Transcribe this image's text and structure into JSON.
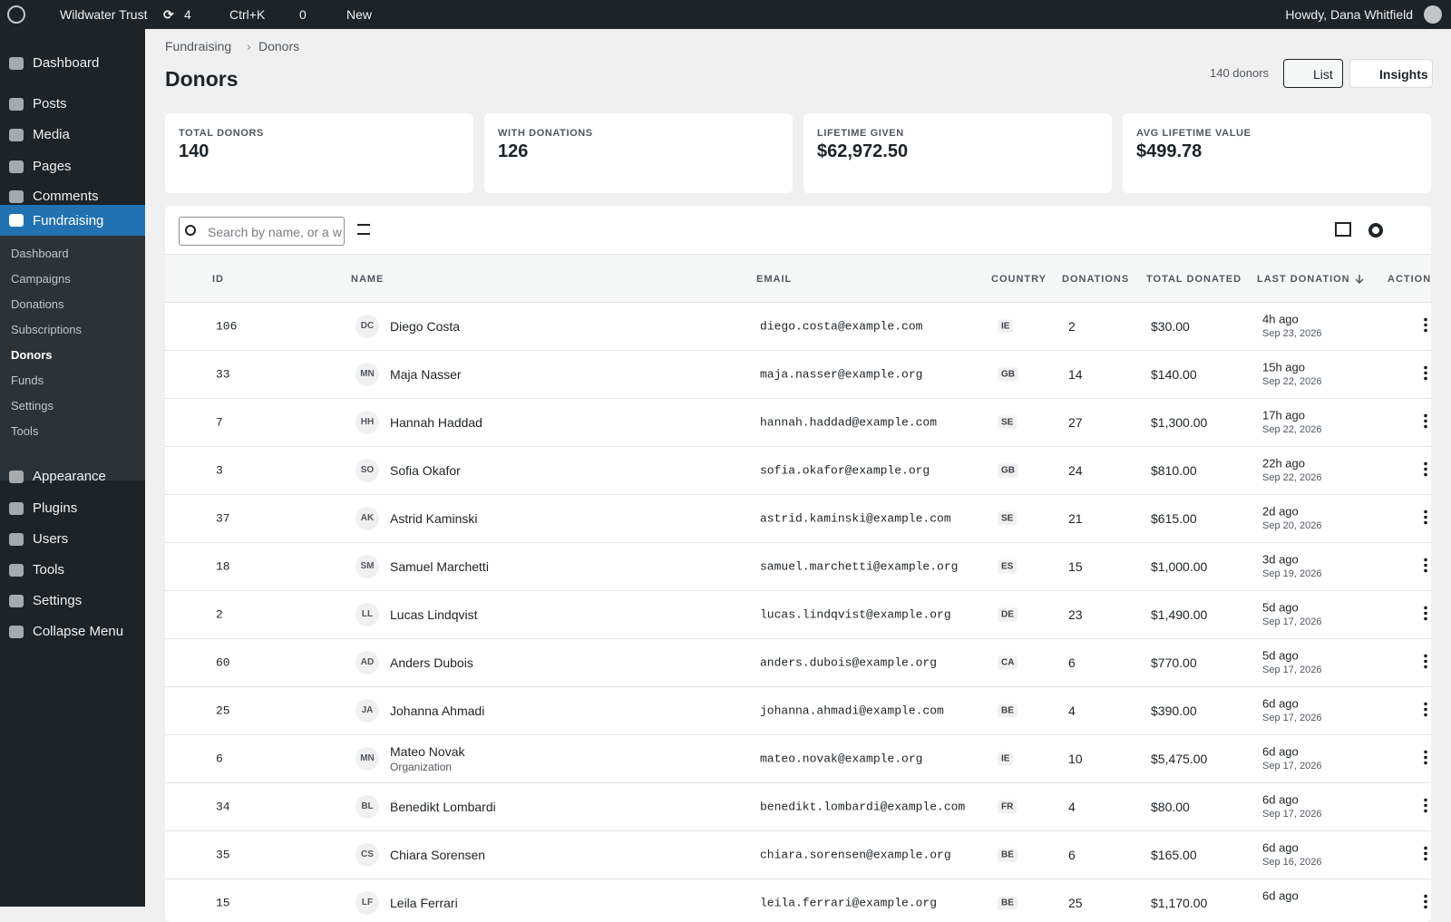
{
  "admin_bar": {
    "site": "Wildwater Trust",
    "updates": "4",
    "search": "Ctrl+K",
    "comments": "0",
    "new": "New",
    "greeting": "Howdy, Dana Whitfield"
  },
  "menu": {
    "top": [
      "Dashboard",
      "Posts",
      "Media",
      "Pages",
      "Comments"
    ],
    "current": "Fundraising",
    "submenu": [
      "Dashboard",
      "Campaigns",
      "Donations",
      "Subscriptions",
      "Donors",
      "Funds",
      "Settings",
      "Tools"
    ],
    "bottom": [
      "Appearance",
      "Plugins",
      "Users",
      "Tools",
      "Settings",
      "Collapse Menu"
    ]
  },
  "breadcrumb": [
    "Fundraising",
    "Donors"
  ],
  "header": {
    "title": "Donors",
    "count": "140 donors",
    "list": "List",
    "insights": "Insights"
  },
  "stats": [
    {
      "label": "TOTAL DONORS",
      "value": "140"
    },
    {
      "label": "WITH DONATIONS",
      "value": "126"
    },
    {
      "label": "LIFETIME GIVEN",
      "value": "$62,972.50"
    },
    {
      "label": "AVG LIFETIME VALUE",
      "value": "$499.78"
    }
  ],
  "toolbar": {
    "search_placeholder": "Search by name, or a w"
  },
  "table": {
    "columns": [
      "ID",
      "NAME",
      "EMAIL",
      "COUNTRY",
      "DONATIONS",
      "TOTAL DONATED",
      "LAST DONATION",
      "ACTIONS"
    ],
    "rows": [
      {
        "id": "106",
        "initials": "DC",
        "name": "Diego Costa",
        "email": "diego.costa@example.com",
        "country": "IE",
        "donations": "2",
        "total": "$30.00",
        "ago": "4h ago",
        "date": "Sep 23, 2026"
      },
      {
        "id": "33",
        "initials": "MN",
        "name": "Maja Nasser",
        "email": "maja.nasser@example.org",
        "country": "GB",
        "donations": "14",
        "total": "$140.00",
        "ago": "15h ago",
        "date": "Sep 22, 2026"
      },
      {
        "id": "7",
        "initials": "HH",
        "name": "Hannah Haddad",
        "email": "hannah.haddad@example.com",
        "country": "SE",
        "donations": "27",
        "total": "$1,300.00",
        "ago": "17h ago",
        "date": "Sep 22, 2026"
      },
      {
        "id": "3",
        "initials": "SO",
        "name": "Sofia Okafor",
        "email": "sofia.okafor@example.org",
        "country": "GB",
        "donations": "24",
        "total": "$810.00",
        "ago": "22h ago",
        "date": "Sep 22, 2026"
      },
      {
        "id": "37",
        "initials": "AK",
        "name": "Astrid Kaminski",
        "email": "astrid.kaminski@example.com",
        "country": "SE",
        "donations": "21",
        "total": "$615.00",
        "ago": "2d ago",
        "date": "Sep 20, 2026"
      },
      {
        "id": "18",
        "initials": "SM",
        "name": "Samuel Marchetti",
        "email": "samuel.marchetti@example.org",
        "country": "ES",
        "donations": "15",
        "total": "$1,000.00",
        "ago": "3d ago",
        "date": "Sep 19, 2026"
      },
      {
        "id": "2",
        "initials": "LL",
        "name": "Lucas Lindqvist",
        "email": "lucas.lindqvist@example.org",
        "country": "DE",
        "donations": "23",
        "total": "$1,490.00",
        "ago": "5d ago",
        "date": "Sep 17, 2026"
      },
      {
        "id": "60",
        "initials": "AD",
        "name": "Anders Dubois",
        "email": "anders.dubois@example.org",
        "country": "CA",
        "donations": "6",
        "total": "$770.00",
        "ago": "5d ago",
        "date": "Sep 17, 2026"
      },
      {
        "id": "25",
        "initials": "JA",
        "name": "Johanna Ahmadi",
        "email": "johanna.ahmadi@example.com",
        "country": "BE",
        "donations": "4",
        "total": "$390.00",
        "ago": "6d ago",
        "date": "Sep 17, 2026"
      },
      {
        "id": "6",
        "initials": "MN",
        "name": "Mateo Novak",
        "sub": "Organization",
        "email": "mateo.novak@example.org",
        "country": "IE",
        "donations": "10",
        "total": "$5,475.00",
        "ago": "6d ago",
        "date": "Sep 17, 2026"
      },
      {
        "id": "34",
        "initials": "BL",
        "name": "Benedikt Lombardi",
        "email": "benedikt.lombardi@example.com",
        "country": "FR",
        "donations": "4",
        "total": "$80.00",
        "ago": "6d ago",
        "date": "Sep 17, 2026"
      },
      {
        "id": "35",
        "initials": "CS",
        "name": "Chiara Sorensen",
        "email": "chiara.sorensen@example.org",
        "country": "BE",
        "donations": "6",
        "total": "$165.00",
        "ago": "6d ago",
        "date": "Sep 16, 2026"
      },
      {
        "id": "15",
        "initials": "LF",
        "name": "Leila Ferrari",
        "email": "leila.ferrari@example.org",
        "country": "BE",
        "donations": "25",
        "total": "$1,170.00",
        "ago": "6d ago"
      }
    ]
  }
}
